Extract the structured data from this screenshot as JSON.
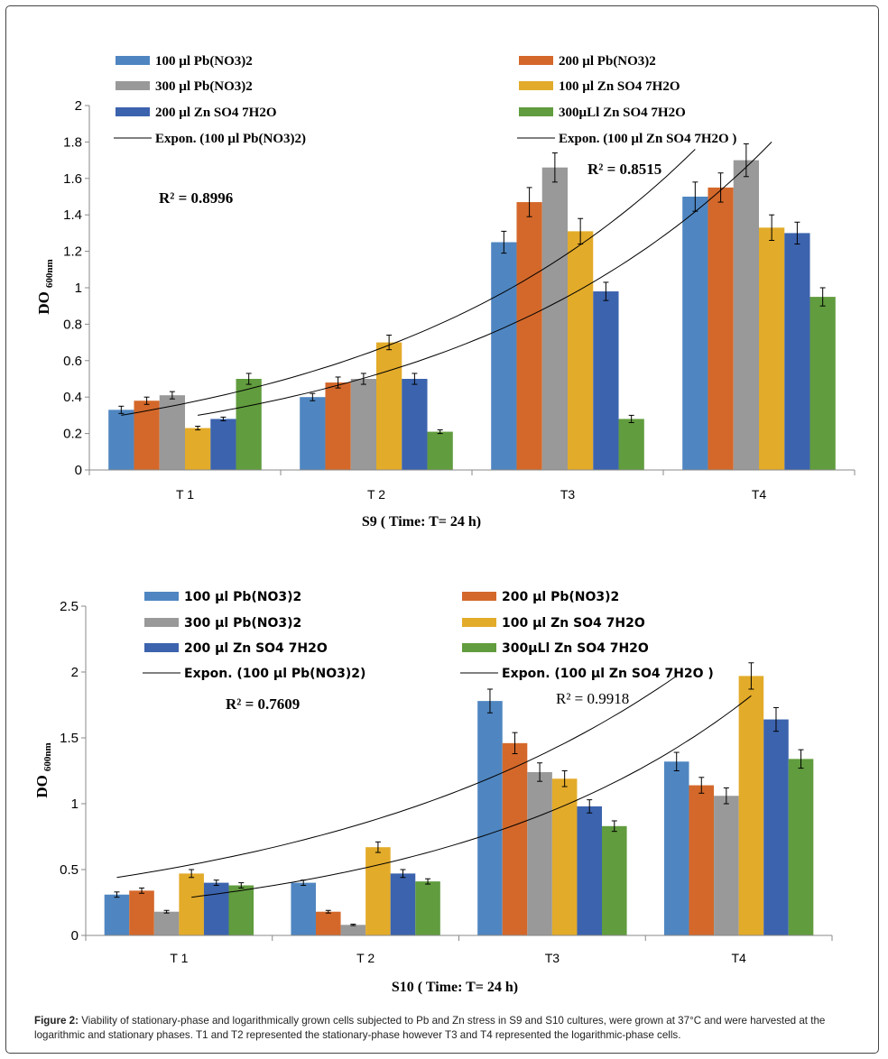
{
  "colors": {
    "s1": "#4f86c1",
    "s2": "#d4682a",
    "s3": "#999999",
    "s4": "#e3ab2a",
    "s5": "#3c63ad",
    "s6": "#619c3e"
  },
  "chart_data": [
    {
      "type": "bar",
      "ylabel": "DO",
      "ylabel_sub": "600nm",
      "xlabel": "S9 ( Time: T= 24 h)",
      "categories": [
        "T 1",
        "T 2",
        "T3",
        "T4"
      ],
      "ylim": [
        0,
        2
      ],
      "yticks": [
        "0",
        "0.2",
        "0.4",
        "0.6",
        "0.8",
        "1",
        "1.2",
        "1.4",
        "1.6",
        "1.8",
        "2"
      ],
      "series": [
        {
          "name": "100 µl Pb(NO3)2",
          "values": [
            0.33,
            0.4,
            1.25,
            1.5
          ],
          "errors": [
            0.02,
            0.02,
            0.06,
            0.08
          ]
        },
        {
          "name": "200 µl Pb(NO3)2",
          "values": [
            0.38,
            0.48,
            1.47,
            1.55
          ],
          "errors": [
            0.02,
            0.03,
            0.08,
            0.08
          ]
        },
        {
          "name": "300 µl Pb(NO3)2",
          "values": [
            0.41,
            0.5,
            1.66,
            1.7
          ],
          "errors": [
            0.02,
            0.03,
            0.08,
            0.09
          ]
        },
        {
          "name": "100 µl Zn SO4 7H2O",
          "values": [
            0.23,
            0.7,
            1.31,
            1.33
          ],
          "errors": [
            0.01,
            0.04,
            0.07,
            0.07
          ]
        },
        {
          "name": "200 µl Zn SO4 7H2O",
          "values": [
            0.28,
            0.5,
            0.98,
            1.3
          ],
          "errors": [
            0.01,
            0.03,
            0.05,
            0.06
          ]
        },
        {
          "name": "300µLl Zn SO4 7H2O",
          "values": [
            0.5,
            0.21,
            0.28,
            0.95
          ],
          "errors": [
            0.03,
            0.01,
            0.02,
            0.05
          ]
        }
      ],
      "trendlines": [
        {
          "name": "Expon. (100 µl Pb(NO3)2)",
          "start": 0.3,
          "end": 1.76
        },
        {
          "name": "Expon. (100 µl Zn SO4 7H2O )",
          "start": 0.3,
          "end": 1.8
        }
      ],
      "annotations": [
        "R² = 0.8996",
        "R² = 0.8515"
      ]
    },
    {
      "type": "bar",
      "ylabel": "DO",
      "ylabel_sub": "600nm",
      "xlabel": "S10 ( Time: T= 24 h)",
      "categories": [
        "T 1",
        "T 2",
        "T3",
        "T4"
      ],
      "ylim": [
        0,
        2.5
      ],
      "yticks": [
        "0",
        "0.5",
        "1",
        "1.5",
        "2",
        "2.5"
      ],
      "series": [
        {
          "name": "100 µl Pb(NO3)2",
          "values": [
            0.31,
            0.4,
            1.78,
            1.32
          ],
          "errors": [
            0.02,
            0.02,
            0.09,
            0.07
          ]
        },
        {
          "name": "200 µl Pb(NO3)2",
          "values": [
            0.34,
            0.18,
            1.46,
            1.14
          ],
          "errors": [
            0.02,
            0.01,
            0.08,
            0.06
          ]
        },
        {
          "name": "300 µl Pb(NO3)2",
          "values": [
            0.18,
            0.08,
            1.24,
            1.06
          ],
          "errors": [
            0.01,
            0.005,
            0.07,
            0.06
          ]
        },
        {
          "name": "100 µl Zn SO4 7H2O",
          "values": [
            0.47,
            0.67,
            1.19,
            1.97
          ],
          "errors": [
            0.03,
            0.04,
            0.06,
            0.1
          ]
        },
        {
          "name": "200 µl Zn SO4 7H2O",
          "values": [
            0.4,
            0.47,
            0.98,
            1.64
          ],
          "errors": [
            0.02,
            0.03,
            0.05,
            0.09
          ]
        },
        {
          "name": "300µLl Zn SO4 7H2O",
          "values": [
            0.38,
            0.41,
            0.83,
            1.34
          ],
          "errors": [
            0.02,
            0.02,
            0.04,
            0.07
          ]
        }
      ],
      "trendlines": [
        {
          "name": "Expon. (100 µl Pb(NO3)2)",
          "start": 0.44,
          "end": 1.97
        },
        {
          "name": "Expon. (100 µl Zn SO4 7H2O )",
          "start": 0.29,
          "end": 1.82
        }
      ],
      "annotations": [
        "R² = 0.7609",
        "R² = 0.9918"
      ]
    }
  ],
  "caption": {
    "label": "Figure 2:",
    "text": "Viability of stationary-phase and logarithmically grown cells subjected to Pb and Zn stress in S9 and S10 cultures, were grown at 37°C and were harvested at the logarithmic and stationary phases. T1 and T2 represented the stationary-phase however T3 and T4 represented the logarithmic-phase cells."
  }
}
